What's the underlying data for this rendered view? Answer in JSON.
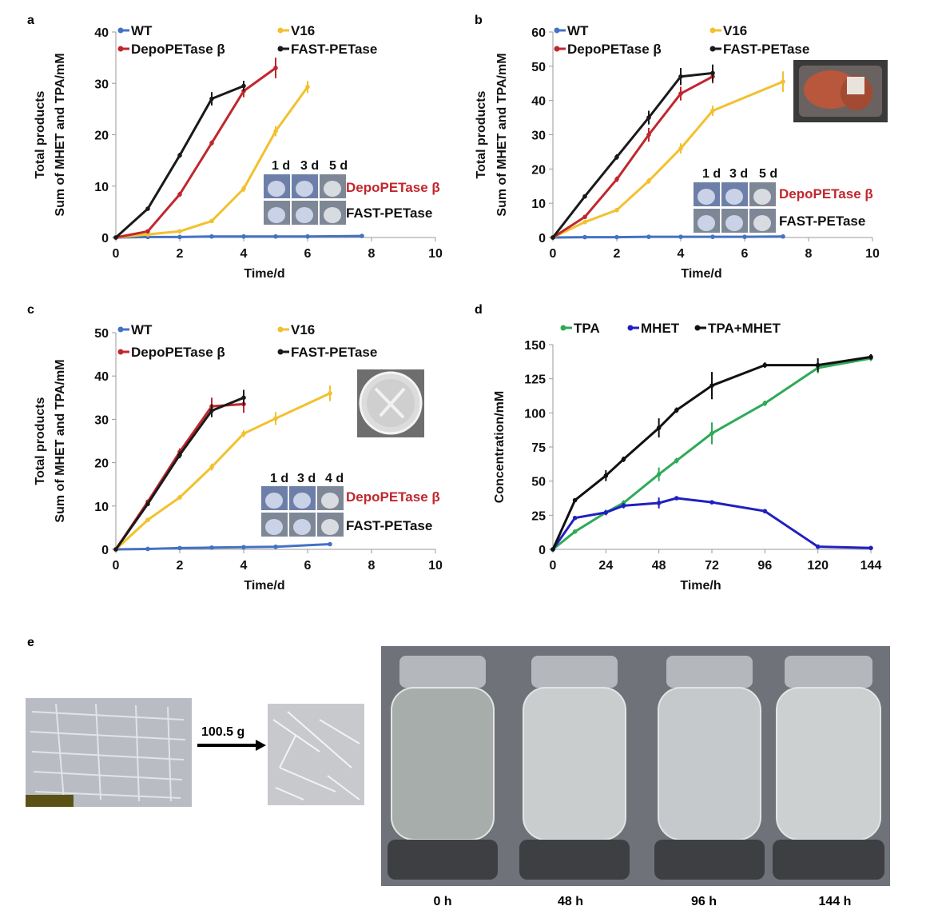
{
  "chart_data": [
    {
      "panel": "a",
      "type": "line",
      "ylabel_lines": [
        "Total products",
        "Sum of MHET and TPA/mM"
      ],
      "xlabel": "Time/d",
      "xlim": [
        0,
        10
      ],
      "ylim": [
        0,
        40
      ],
      "xticks": [
        0,
        2,
        4,
        6,
        8,
        10
      ],
      "yticks": [
        0,
        10,
        20,
        30,
        40
      ],
      "series": [
        {
          "name": "WT",
          "color": "#4472C4",
          "x": [
            0,
            1,
            2,
            3,
            4,
            5,
            6,
            7.7
          ],
          "y": [
            0,
            0.1,
            0.1,
            0.2,
            0.2,
            0.2,
            0.2,
            0.3
          ]
        },
        {
          "name": "V16",
          "color": "#F2C12E",
          "x": [
            0,
            1,
            2,
            3,
            4,
            5,
            6
          ],
          "y": [
            0,
            0.6,
            1.2,
            3.2,
            9.5,
            20.7,
            29.3
          ],
          "err": [
            0,
            0.2,
            0.3,
            0.4,
            0.6,
            1.0,
            1.2
          ]
        },
        {
          "name": "DepoPETase β",
          "color": "#C0272D",
          "x": [
            0,
            1,
            2,
            3,
            4,
            5
          ],
          "y": [
            0,
            1.2,
            8.4,
            18.4,
            28.5,
            33.0
          ],
          "err": [
            0,
            0.3,
            0.5,
            0.5,
            1.2,
            2.0
          ]
        },
        {
          "name": "FAST-PETase",
          "color": "#1a1a1a",
          "x": [
            0,
            1,
            2,
            3,
            4
          ],
          "y": [
            0,
            5.6,
            16.0,
            27.0,
            29.5
          ],
          "err": [
            0,
            0.3,
            0.5,
            1.3,
            1.0
          ]
        }
      ],
      "inset_days": [
        "1 d",
        "3 d",
        "5 d"
      ],
      "inset_labels": [
        "DepoPETase β",
        "FAST-PETase"
      ]
    },
    {
      "panel": "b",
      "type": "line",
      "ylabel_lines": [
        "Total products",
        "Sum of MHET and TPA/mM"
      ],
      "xlabel": "Time/d",
      "xlim": [
        0,
        10
      ],
      "ylim": [
        0,
        60
      ],
      "xticks": [
        0,
        2,
        4,
        6,
        8,
        10
      ],
      "yticks": [
        0,
        10,
        20,
        30,
        40,
        50,
        60
      ],
      "series": [
        {
          "name": "WT",
          "color": "#4472C4",
          "x": [
            0,
            1,
            2,
            3,
            4,
            5,
            6,
            7.2
          ],
          "y": [
            0,
            0.1,
            0.1,
            0.2,
            0.2,
            0.2,
            0.2,
            0.3
          ]
        },
        {
          "name": "V16",
          "color": "#F2C12E",
          "x": [
            0,
            1,
            2,
            3,
            4,
            5,
            7.2
          ],
          "y": [
            0,
            4.5,
            8.0,
            16.5,
            26.0,
            37.0,
            45.5
          ],
          "err": [
            0,
            0.4,
            0.5,
            0.8,
            1.5,
            1.5,
            3.0
          ]
        },
        {
          "name": "DepoPETase β",
          "color": "#C0272D",
          "x": [
            0,
            1,
            2,
            3,
            4,
            5
          ],
          "y": [
            0,
            6.0,
            17.0,
            30.0,
            42.0,
            47.0
          ],
          "err": [
            0,
            0.5,
            0.8,
            2.0,
            2.0,
            2.0
          ]
        },
        {
          "name": "FAST-PETase",
          "color": "#1a1a1a",
          "x": [
            0,
            1,
            2,
            3,
            4,
            5
          ],
          "y": [
            0,
            12.0,
            23.5,
            35.0,
            47.0,
            48.0
          ],
          "err": [
            0,
            0.5,
            0.8,
            2.0,
            2.5,
            2.5
          ]
        }
      ],
      "inset_days": [
        "1 d",
        "3 d",
        "5 d"
      ],
      "inset_labels": [
        "DepoPETase β",
        "FAST-PETase"
      ]
    },
    {
      "panel": "c",
      "type": "line",
      "ylabel_lines": [
        "Total products",
        "Sum of MHET and TPA/mM"
      ],
      "xlabel": "Time/d",
      "xlim": [
        0,
        10
      ],
      "ylim": [
        0,
        50
      ],
      "xticks": [
        0,
        2,
        4,
        6,
        8,
        10
      ],
      "yticks": [
        0,
        10,
        20,
        30,
        40,
        50
      ],
      "series": [
        {
          "name": "WT",
          "color": "#4472C4",
          "x": [
            0,
            1,
            2,
            3,
            4,
            5,
            6.7
          ],
          "y": [
            0,
            0.1,
            0.3,
            0.4,
            0.5,
            0.6,
            1.2
          ]
        },
        {
          "name": "V16",
          "color": "#F2C12E",
          "x": [
            0,
            1,
            2,
            3,
            4,
            5,
            6.7
          ],
          "y": [
            0,
            6.8,
            12.0,
            19.0,
            26.7,
            30.2,
            36.0
          ],
          "err": [
            0,
            0.4,
            0.5,
            0.8,
            0.8,
            1.5,
            1.8
          ]
        },
        {
          "name": "DepoPETase β",
          "color": "#C0272D",
          "x": [
            0,
            1,
            2,
            3,
            4
          ],
          "y": [
            0,
            11.0,
            22.5,
            33.0,
            33.5
          ],
          "err": [
            0,
            0.5,
            0.8,
            2.0,
            2.0
          ]
        },
        {
          "name": "FAST-PETase",
          "color": "#1a1a1a",
          "x": [
            0,
            1,
            2,
            3,
            4
          ],
          "y": [
            0,
            10.5,
            21.8,
            32.0,
            35.0
          ],
          "err": [
            0,
            0.5,
            0.8,
            1.5,
            1.8
          ]
        }
      ],
      "inset_days": [
        "1 d",
        "3 d",
        "4 d"
      ],
      "inset_labels": [
        "DepoPETase β",
        "FAST-PETase"
      ]
    },
    {
      "panel": "d",
      "type": "line",
      "ylabel_lines": [
        "Concentration/mM"
      ],
      "xlabel": "Time/h",
      "xlim": [
        0,
        144
      ],
      "ylim": [
        0,
        150
      ],
      "xticks": [
        0,
        24,
        48,
        72,
        96,
        120,
        144
      ],
      "yticks": [
        0,
        25,
        50,
        75,
        100,
        125,
        150
      ],
      "series": [
        {
          "name": "TPA",
          "color": "#2EAA58",
          "x": [
            0,
            10,
            24,
            32,
            48,
            56,
            72,
            96,
            120,
            144
          ],
          "y": [
            0,
            13,
            27,
            34,
            55,
            65,
            85,
            107,
            133,
            140
          ],
          "err": [
            0,
            1,
            1,
            2,
            5,
            2,
            8,
            2,
            4,
            2
          ]
        },
        {
          "name": "MHET",
          "color": "#2020C0",
          "x": [
            0,
            10,
            24,
            32,
            48,
            56,
            72,
            96,
            120,
            144
          ],
          "y": [
            0,
            23,
            27,
            32,
            34,
            37.5,
            34.5,
            28,
            2,
            1
          ],
          "err": [
            0,
            1,
            2,
            2,
            4,
            1,
            1,
            1,
            1,
            1
          ]
        },
        {
          "name": "TPA+MHET",
          "color": "#111111",
          "x": [
            0,
            10,
            24,
            32,
            48,
            56,
            72,
            96,
            120,
            144
          ],
          "y": [
            0,
            36,
            54,
            66,
            89,
            102,
            120,
            135,
            135,
            141
          ],
          "err": [
            0,
            1,
            4,
            2,
            7,
            2,
            10,
            2,
            5,
            2
          ]
        }
      ]
    }
  ],
  "panel_labels": [
    "a",
    "b",
    "c",
    "d",
    "e"
  ],
  "panel_e": {
    "weight": "100.5 g",
    "time_labels": [
      "0 h",
      "48 h",
      "96 h",
      "144 h"
    ]
  }
}
